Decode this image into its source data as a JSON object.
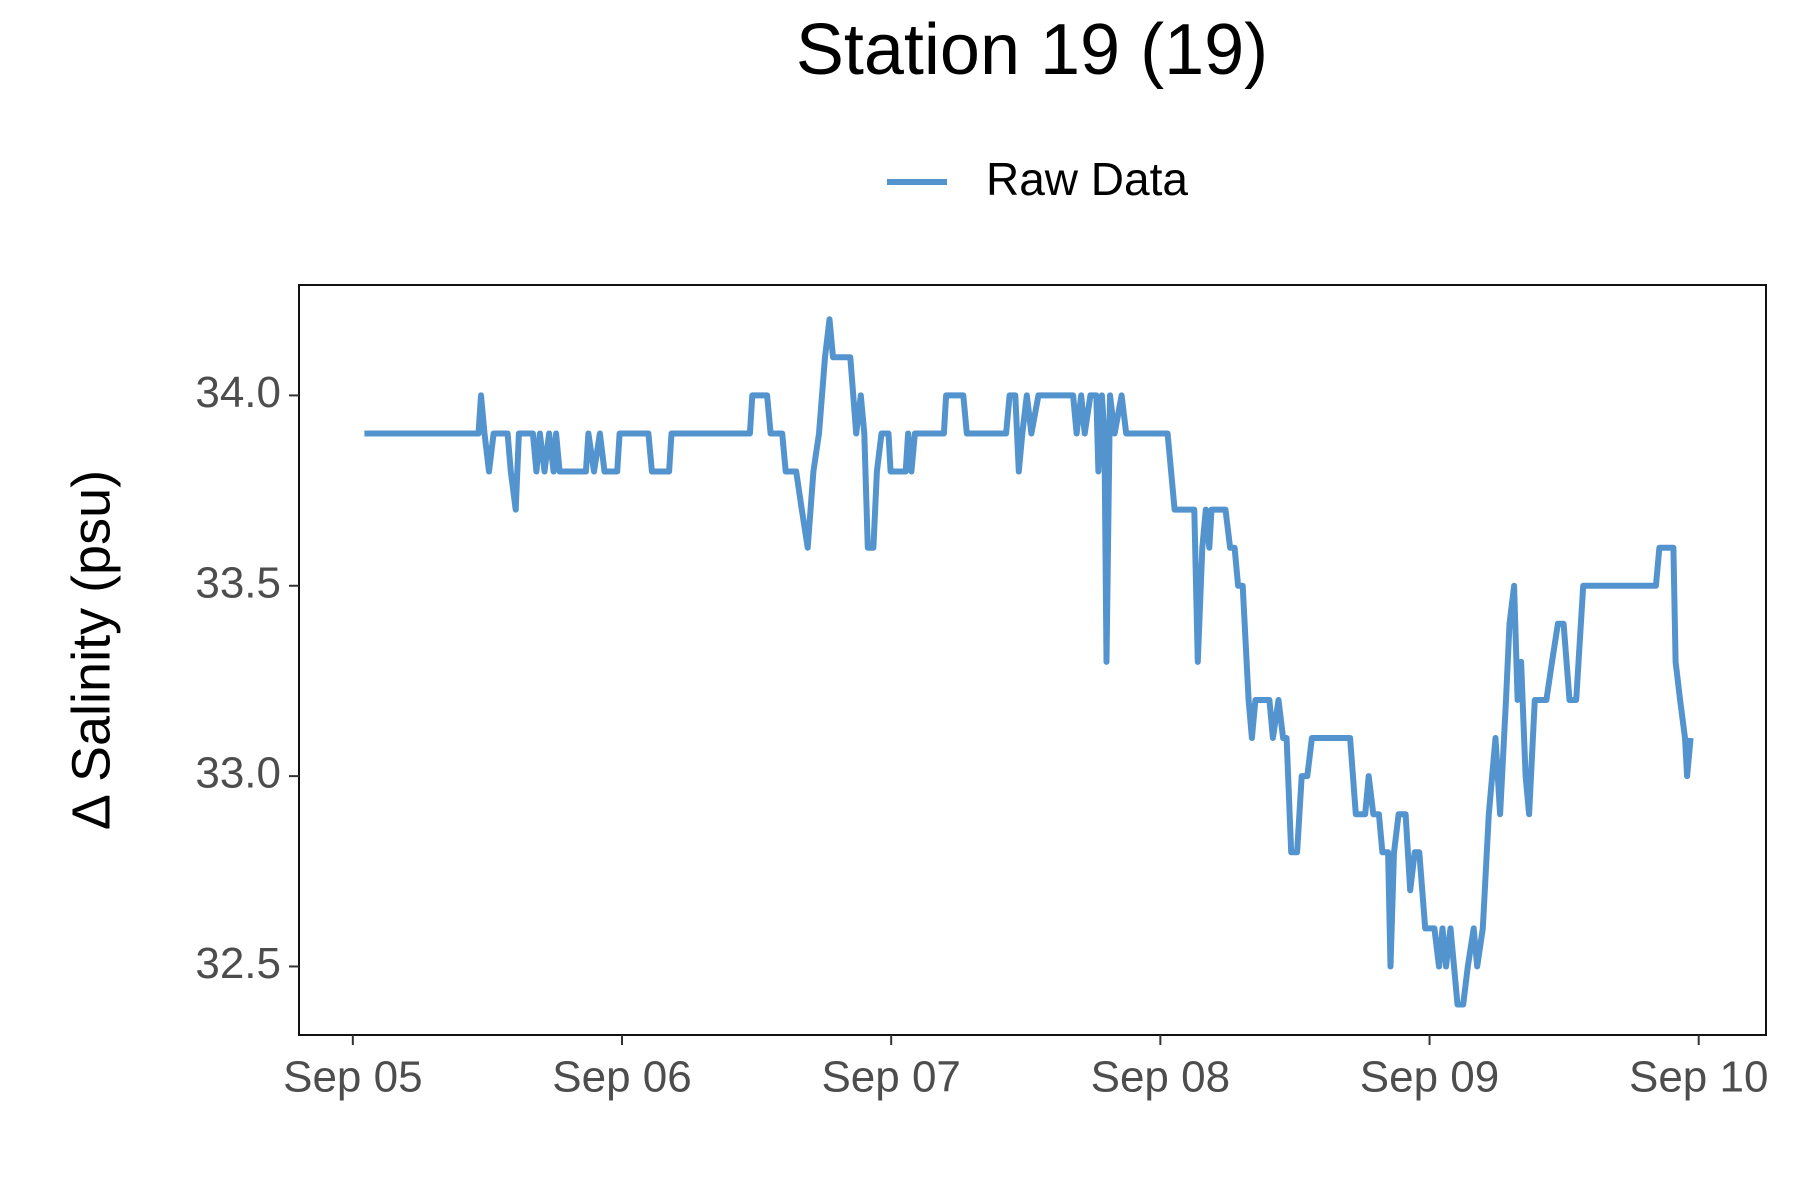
{
  "chart_data": {
    "type": "line",
    "title": "Station 19 (19)",
    "y_label": "Δ Salinity (psu)",
    "legend_position": "top",
    "xlim": [
      -0.2,
      5.25
    ],
    "ylim": [
      32.32,
      34.29
    ],
    "xticks": [
      {
        "value": 0,
        "label": "Sep 05"
      },
      {
        "value": 1,
        "label": "Sep 06"
      },
      {
        "value": 2,
        "label": "Sep 07"
      },
      {
        "value": 3,
        "label": "Sep 08"
      },
      {
        "value": 4,
        "label": "Sep 09"
      },
      {
        "value": 5,
        "label": "Sep 10"
      }
    ],
    "yticks": [
      {
        "value": 32.5,
        "label": "32.5"
      },
      {
        "value": 33,
        "label": "33.0"
      },
      {
        "value": 33.5,
        "label": "33.5"
      },
      {
        "value": 34,
        "label": "34.0"
      }
    ],
    "series": [
      {
        "name": "Raw Data",
        "color": "#5494ce",
        "x": [
          0.043,
          0.467,
          0.476,
          0.489,
          0.506,
          0.523,
          0.575,
          0.587,
          0.605,
          0.617,
          0.669,
          0.682,
          0.695,
          0.712,
          0.729,
          0.746,
          0.755,
          0.768,
          0.866,
          0.875,
          0.896,
          0.918,
          0.935,
          0.982,
          0.991,
          1.098,
          1.111,
          1.175,
          1.184,
          1.475,
          1.484,
          1.539,
          1.552,
          1.595,
          1.608,
          1.647,
          1.668,
          1.69,
          1.711,
          1.732,
          1.754,
          1.771,
          1.784,
          1.848,
          1.87,
          1.887,
          1.9,
          1.913,
          1.934,
          1.947,
          1.964,
          1.99,
          1.998,
          2.054,
          2.063,
          2.075,
          2.088,
          2.196,
          2.204,
          2.268,
          2.281,
          2.427,
          2.44,
          2.461,
          2.474,
          2.487,
          2.504,
          2.521,
          2.547,
          2.569,
          2.676,
          2.689,
          2.706,
          2.719,
          2.74,
          2.762,
          2.77,
          2.783,
          2.792,
          2.8,
          2.813,
          2.83,
          2.856,
          2.873,
          3.027,
          3.053,
          3.126,
          3.139,
          3.156,
          3.169,
          3.182,
          3.19,
          3.242,
          3.259,
          3.276,
          3.289,
          3.306,
          3.328,
          3.34,
          3.353,
          3.405,
          3.418,
          3.439,
          3.456,
          3.469,
          3.486,
          3.508,
          3.525,
          3.546,
          3.563,
          3.705,
          3.726,
          3.761,
          3.774,
          3.791,
          3.812,
          3.825,
          3.846,
          3.855,
          3.868,
          3.885,
          3.911,
          3.928,
          3.945,
          3.962,
          3.984,
          4.018,
          4.035,
          4.048,
          4.061,
          4.078,
          4.091,
          4.104,
          4.125,
          4.142,
          4.164,
          4.177,
          4.198,
          4.22,
          4.245,
          4.262,
          4.284,
          4.297,
          4.314,
          4.327,
          4.34,
          4.357,
          4.37,
          4.391,
          4.434,
          4.455,
          4.477,
          4.498,
          4.52,
          4.545,
          4.571,
          4.841,
          4.854,
          4.906,
          4.914,
          4.931,
          4.949,
          4.957,
          4.97
        ],
        "values": [
          33.9,
          33.9,
          34.0,
          33.9,
          33.8,
          33.9,
          33.9,
          33.8,
          33.7,
          33.9,
          33.9,
          33.8,
          33.9,
          33.8,
          33.9,
          33.8,
          33.9,
          33.8,
          33.8,
          33.9,
          33.8,
          33.9,
          33.8,
          33.8,
          33.9,
          33.9,
          33.8,
          33.8,
          33.9,
          33.9,
          34.0,
          34.0,
          33.9,
          33.9,
          33.8,
          33.8,
          33.7,
          33.6,
          33.8,
          33.9,
          34.1,
          34.2,
          34.1,
          34.1,
          33.9,
          34.0,
          33.9,
          33.6,
          33.6,
          33.8,
          33.9,
          33.9,
          33.8,
          33.8,
          33.9,
          33.8,
          33.9,
          33.9,
          34.0,
          34.0,
          33.9,
          33.9,
          34.0,
          34.0,
          33.8,
          33.9,
          34.0,
          33.9,
          34.0,
          34.0,
          34.0,
          33.9,
          34.0,
          33.9,
          34.0,
          34.0,
          33.8,
          34.0,
          33.9,
          33.3,
          34.0,
          33.9,
          34.0,
          33.9,
          33.9,
          33.7,
          33.7,
          33.3,
          33.6,
          33.7,
          33.6,
          33.7,
          33.7,
          33.6,
          33.6,
          33.5,
          33.5,
          33.2,
          33.1,
          33.2,
          33.2,
          33.1,
          33.2,
          33.1,
          33.1,
          32.8,
          32.8,
          33.0,
          33.0,
          33.1,
          33.1,
          32.9,
          32.9,
          33.0,
          32.9,
          32.9,
          32.8,
          32.8,
          32.5,
          32.8,
          32.9,
          32.9,
          32.7,
          32.8,
          32.8,
          32.6,
          32.6,
          32.5,
          32.6,
          32.5,
          32.6,
          32.5,
          32.4,
          32.4,
          32.5,
          32.6,
          32.5,
          32.6,
          32.9,
          33.1,
          32.9,
          33.2,
          33.4,
          33.5,
          33.2,
          33.3,
          33.0,
          32.9,
          33.2,
          33.2,
          33.3,
          33.4,
          33.4,
          33.2,
          33.2,
          33.5,
          33.5,
          33.6,
          33.6,
          33.3,
          33.2,
          33.1,
          33.0,
          33.1
        ]
      }
    ]
  }
}
